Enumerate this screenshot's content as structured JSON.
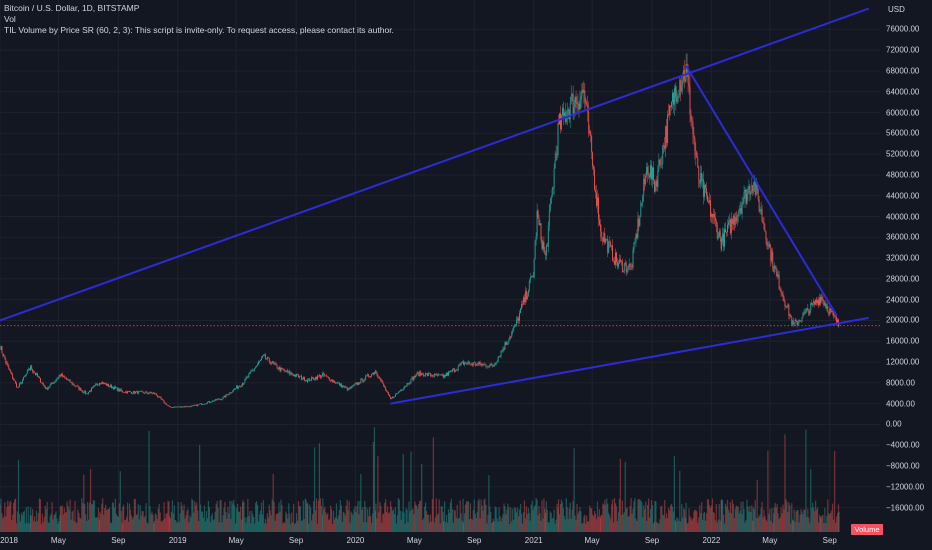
{
  "legend": {
    "symbol": "Bitcoin / U.S. Dollar, 1D, BITSTAMP",
    "volume": "Vol",
    "indicator": "TIL Volume by Price SR (60, 2, 3): This script is invite-only. To request access, please contact its author."
  },
  "price_scale": {
    "currency": "USD",
    "ticks": [
      "76000.00",
      "72000.00",
      "68000.00",
      "64000.00",
      "60000.00",
      "56000.00",
      "52000.00",
      "48000.00",
      "44000.00",
      "40000.00",
      "36000.00",
      "32000.00",
      "28000.00",
      "24000.00",
      "20000.00",
      "16000.00",
      "12000.00",
      "8000.00",
      "4000.00",
      "0.00",
      "−4000.00",
      "−8000.00",
      "−12000.00",
      "−16000.00"
    ]
  },
  "time_scale": {
    "ticks": [
      "2018",
      "May",
      "Sep",
      "2019",
      "May",
      "Sep",
      "2020",
      "May",
      "Sep",
      "2021",
      "May",
      "Sep",
      "2022",
      "May",
      "Sep"
    ]
  },
  "volume_badge": "Volume",
  "colors": {
    "background": "#131722",
    "up": "#26a69a",
    "down": "#ef5350",
    "trendline": "#2c2cd6",
    "price_line": "#f23645"
  },
  "chart_data": {
    "type": "candlestick",
    "symbol": "BTCUSD",
    "interval": "1D",
    "exchange": "BITSTAMP",
    "x_range": [
      "2018-01-01",
      "2022-09-20"
    ],
    "ylim": [
      -18000,
      78000
    ],
    "trendlines": [
      {
        "from": [
          "2018-01-01",
          20000
        ],
        "to": [
          "2022-11-20",
          80000
        ]
      },
      {
        "from": [
          "2021-11-10",
          69000
        ],
        "to": [
          "2022-09-15",
          21000
        ]
      },
      {
        "from": [
          "2020-03-13",
          4000
        ],
        "to": [
          "2022-11-20",
          20500
        ]
      }
    ],
    "price_line": 19000,
    "closes": [
      [
        "2018-01-01",
        15000
      ],
      [
        "2018-01-15",
        11500
      ],
      [
        "2018-02-06",
        7000
      ],
      [
        "2018-03-05",
        11000
      ],
      [
        "2018-04-06",
        6800
      ],
      [
        "2018-05-05",
        9500
      ],
      [
        "2018-06-28",
        5900
      ],
      [
        "2018-07-25",
        8200
      ],
      [
        "2018-09-10",
        6300
      ],
      [
        "2018-11-14",
        6000
      ],
      [
        "2018-12-15",
        3300
      ],
      [
        "2019-02-01",
        3500
      ],
      [
        "2019-04-02",
        5000
      ],
      [
        "2019-05-15",
        8000
      ],
      [
        "2019-06-26",
        13000
      ],
      [
        "2019-08-01",
        10500
      ],
      [
        "2019-09-25",
        8500
      ],
      [
        "2019-10-26",
        9500
      ],
      [
        "2019-12-17",
        6700
      ],
      [
        "2020-02-12",
        10300
      ],
      [
        "2020-03-13",
        4800
      ],
      [
        "2020-05-08",
        9800
      ],
      [
        "2020-06-30",
        9200
      ],
      [
        "2020-08-10",
        11800
      ],
      [
        "2020-10-10",
        11300
      ],
      [
        "2020-11-25",
        19000
      ],
      [
        "2020-12-31",
        29000
      ],
      [
        "2021-01-08",
        40000
      ],
      [
        "2021-01-25",
        32000
      ],
      [
        "2021-02-21",
        57000
      ],
      [
        "2021-03-13",
        61000
      ],
      [
        "2021-04-14",
        64000
      ],
      [
        "2021-05-19",
        37000
      ],
      [
        "2021-06-22",
        31000
      ],
      [
        "2021-07-20",
        30000
      ],
      [
        "2021-08-23",
        50000
      ],
      [
        "2021-09-07",
        46000
      ],
      [
        "2021-10-20",
        65000
      ],
      [
        "2021-11-10",
        68000
      ],
      [
        "2021-12-04",
        48000
      ],
      [
        "2022-01-22",
        35000
      ],
      [
        "2022-03-28",
        47000
      ],
      [
        "2022-05-10",
        30000
      ],
      [
        "2022-06-18",
        19000
      ],
      [
        "2022-08-14",
        24500
      ],
      [
        "2022-09-20",
        19000
      ]
    ]
  }
}
